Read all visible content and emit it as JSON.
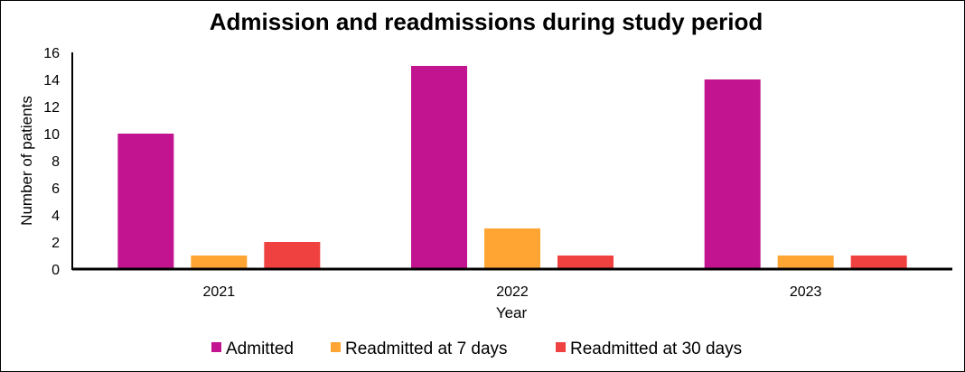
{
  "chart_data": {
    "type": "bar",
    "title": "Admission and readmissions during study period",
    "xlabel": "Year",
    "ylabel": "Number of patients",
    "categories": [
      "2021",
      "2022",
      "2023"
    ],
    "yticks": [
      "0",
      "2",
      "4",
      "6",
      "8",
      "10",
      "12",
      "14",
      "16"
    ],
    "ylim": [
      0,
      16
    ],
    "grid": false,
    "legend_position": "bottom",
    "series": [
      {
        "name": "Admitted",
        "color": "#C21490",
        "values": [
          10,
          15,
          14
        ]
      },
      {
        "name": "Readmitted at 7 days",
        "color": "#FFA533",
        "values": [
          1,
          3,
          1
        ]
      },
      {
        "name": "Readmitted at 30 days",
        "color": "#F04141",
        "values": [
          2,
          1,
          1
        ]
      }
    ]
  }
}
